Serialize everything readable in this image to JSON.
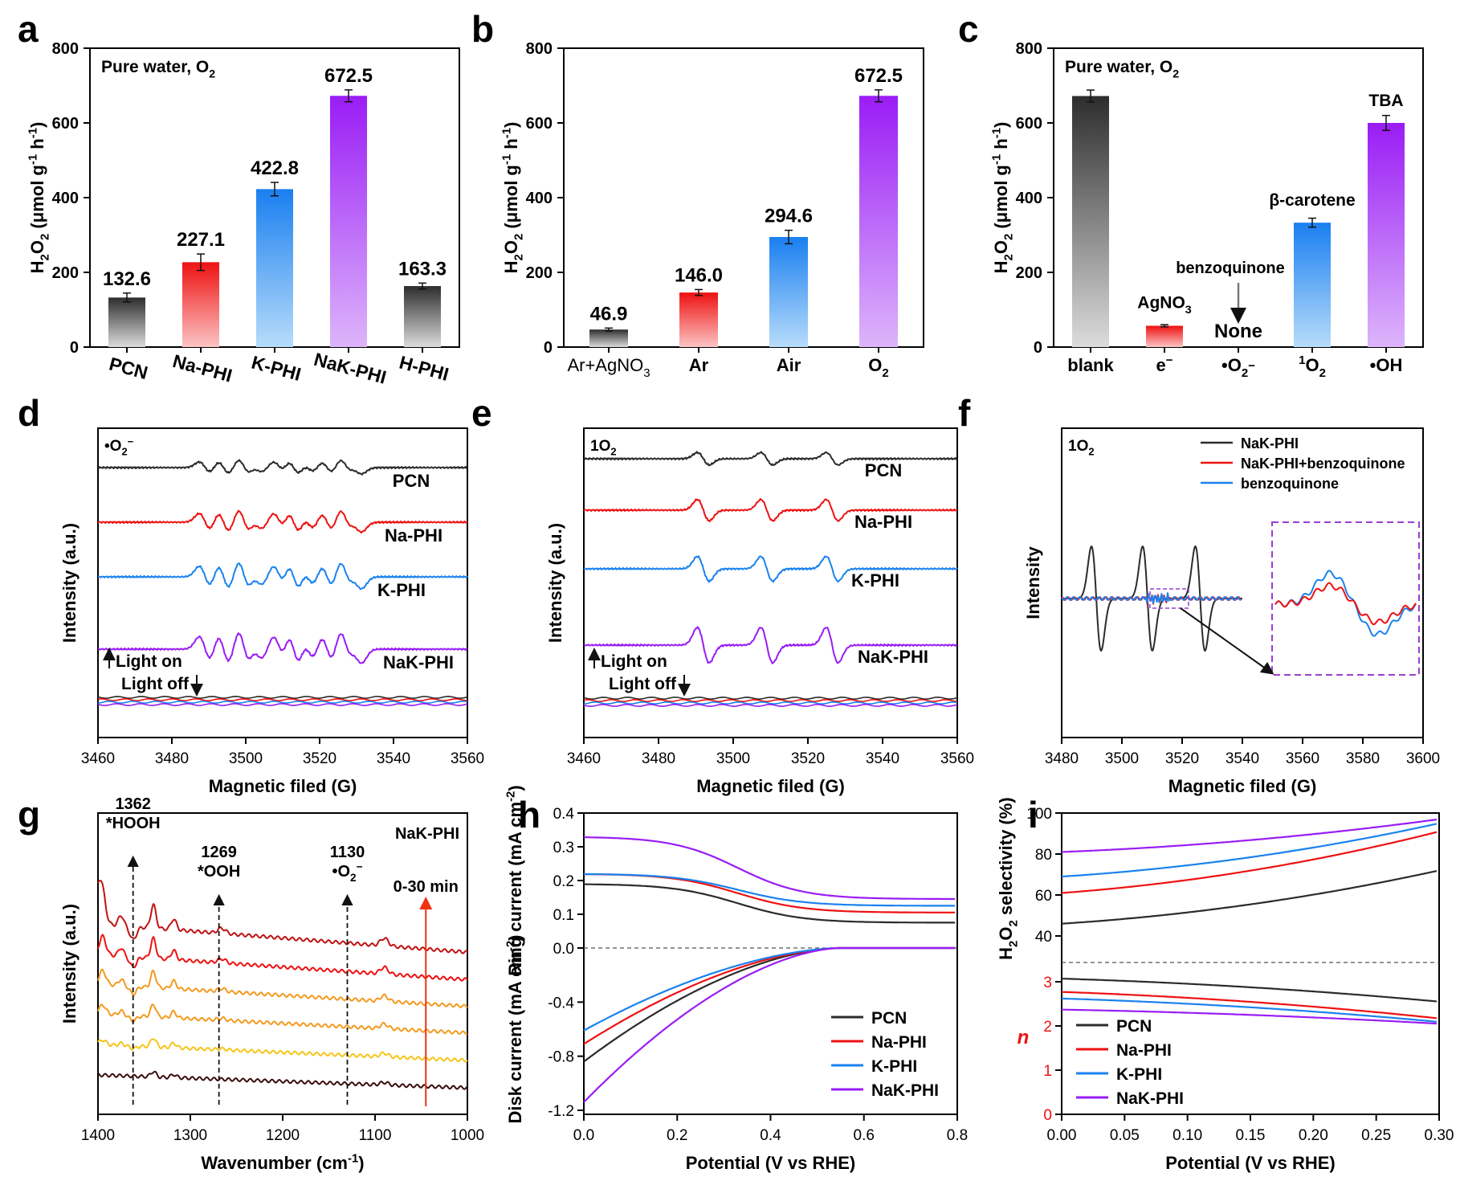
{
  "colors": {
    "black": "#2b2b2b",
    "red": "#ee1111",
    "blue": "#1a82ee",
    "purple": "#9a1cf5",
    "gray": "#777777",
    "orange": "#f39a1f",
    "darkred": "#c01212",
    "brown": "#3a0d0d",
    "yellow": "#f6c51a"
  },
  "chart_data": [
    {
      "panel": "a",
      "type": "bar",
      "title": "Pure water, O2",
      "ylabel": "H2O2 (μmol g-1 h-1)",
      "xlabel": "",
      "ylim": [
        0,
        800
      ],
      "yticks": [
        0,
        200,
        400,
        600,
        800
      ],
      "categories": [
        "PCN",
        "Na-PHI",
        "K-PHI",
        "NaK-PHI",
        "H-PHI"
      ],
      "values": [
        132.6,
        227.1,
        422.8,
        672.5,
        163.3
      ],
      "errors": [
        12,
        22,
        18,
        16,
        8
      ],
      "value_labels": [
        "132.6",
        "227.1",
        "422.8",
        "672.5",
        "163.3"
      ],
      "bar_colors": [
        "gray",
        "red",
        "blue",
        "purple",
        "gray"
      ]
    },
    {
      "panel": "b",
      "type": "bar",
      "title": "",
      "ylabel": "H2O2 (μmol g-1 h-1)",
      "ylim": [
        0,
        800
      ],
      "yticks": [
        0,
        200,
        400,
        600,
        800
      ],
      "categories": [
        "Ar+AgNO3",
        "Ar",
        "Air",
        "O2"
      ],
      "values": [
        46.9,
        146.0,
        294.6,
        672.5
      ],
      "errors": [
        4,
        8,
        18,
        16
      ],
      "value_labels": [
        "46.9",
        "146.0",
        "294.6",
        "672.5"
      ],
      "bar_colors": [
        "gray",
        "red",
        "blue",
        "purple"
      ]
    },
    {
      "panel": "c",
      "type": "bar",
      "title": "Pure water, O2",
      "ylabel": "H2O2 (μmol g-1 h-1)",
      "ylim": [
        0,
        800
      ],
      "yticks": [
        0,
        200,
        400,
        600,
        800
      ],
      "categories": [
        "blank",
        "e−",
        "•O2−",
        "1O2",
        "•OH"
      ],
      "values": [
        672,
        57,
        0,
        333,
        600
      ],
      "errors": [
        16,
        3,
        0,
        12,
        20
      ],
      "annotations": [
        "",
        "AgNO3",
        "benzoquinone",
        "β-carotene",
        "TBA"
      ],
      "none_label": "None",
      "bar_colors": [
        "gray",
        "red",
        "purple",
        "blue",
        "purple"
      ]
    },
    {
      "panel": "d",
      "type": "line",
      "title": "•O2−",
      "xlabel": "Magnetic filed (G)",
      "ylabel": "Intensity (a.u.)",
      "xlim": [
        3460,
        3560
      ],
      "xticks": [
        3460,
        3480,
        3500,
        3520,
        3540,
        3560
      ],
      "series": [
        {
          "name": "PCN",
          "color": "black",
          "amp": 0.45
        },
        {
          "name": "Na-PHI",
          "color": "red",
          "amp": 0.7
        },
        {
          "name": "K-PHI",
          "color": "blue",
          "amp": 0.85
        },
        {
          "name": "NaK-PHI",
          "color": "purple",
          "amp": 1.0
        }
      ],
      "light_on": "Light on",
      "light_off": "Light off"
    },
    {
      "panel": "e",
      "type": "line",
      "title": "1O2",
      "xlabel": "Magnetic filed (G)",
      "ylabel": "Intensity (a.u.)",
      "xlim": [
        3460,
        3560
      ],
      "xticks": [
        3460,
        3480,
        3500,
        3520,
        3540,
        3560
      ],
      "series": [
        {
          "name": "PCN",
          "color": "black",
          "amp": 0.35
        },
        {
          "name": "Na-PHI",
          "color": "red",
          "amp": 0.6
        },
        {
          "name": "K-PHI",
          "color": "blue",
          "amp": 0.7
        },
        {
          "name": "NaK-PHI",
          "color": "purple",
          "amp": 1.0
        }
      ],
      "light_on": "Light on",
      "light_off": "Light off"
    },
    {
      "panel": "f",
      "type": "line",
      "title": "1O2",
      "xlabel": "Magnetic filed (G)",
      "ylabel": "Intensity",
      "xlim": [
        3480,
        3600
      ],
      "xticks": [
        3480,
        3500,
        3520,
        3540,
        3560,
        3580,
        3600
      ],
      "series": [
        {
          "name": "NaK-PHI",
          "color": "black"
        },
        {
          "name": "NaK-PHI+benzoquinone",
          "color": "red"
        },
        {
          "name": "benzoquinone",
          "color": "blue"
        }
      ]
    },
    {
      "panel": "g",
      "type": "line",
      "title": "NaK-PHI",
      "xlabel": "Wavenumber (cm-1)",
      "ylabel": "Intensity (a.u.)",
      "xlim": [
        1400,
        1000
      ],
      "xticks": [
        1400,
        1300,
        1200,
        1100,
        1000
      ],
      "time_label": "0-30 min",
      "peaks": [
        {
          "x": 1362,
          "num": "1362",
          "name": "*HOOH"
        },
        {
          "x": 1269,
          "num": "1269",
          "name": "*OOH"
        },
        {
          "x": 1130,
          "num": "1130",
          "name": "•O2−"
        }
      ],
      "series_colors": [
        "brown",
        "yellow",
        "orange",
        "orange",
        "red",
        "darkred"
      ]
    },
    {
      "panel": "h",
      "type": "line",
      "xlabel": "Potential (V vs RHE)",
      "ylabel_top": "Ring current (mA cm-2)",
      "ylabel_bottom": "Disk current (mA cm-2)",
      "xlim": [
        0,
        0.8
      ],
      "xticks": [
        "0.0",
        "0.2",
        "0.4",
        "0.6",
        "0.8"
      ],
      "ring_ticks": [
        "0.4",
        "0.3",
        "0.2",
        "0.1",
        "0.0"
      ],
      "disk_ticks": [
        "-0.4",
        "-0.8",
        "-1.2"
      ],
      "series": [
        {
          "name": "PCN",
          "color": "black",
          "ring_start": 0.19,
          "ring_end": 0.075,
          "disk_start": -0.84
        },
        {
          "name": "Na-PHI",
          "color": "red",
          "ring_start": 0.22,
          "ring_end": 0.105,
          "disk_start": -0.71
        },
        {
          "name": "K-PHI",
          "color": "blue",
          "ring_start": 0.22,
          "ring_end": 0.125,
          "disk_start": -0.61
        },
        {
          "name": "NaK-PHI",
          "color": "purple",
          "ring_start": 0.33,
          "ring_end": 0.145,
          "disk_start": -1.14
        }
      ]
    },
    {
      "panel": "i",
      "type": "line",
      "xlabel": "Potential (V vs RHE)",
      "ylabel_top": "H2O2 selectivity (%)",
      "ylabel_bottom": "n",
      "xlim": [
        0,
        0.3
      ],
      "xticks": [
        "0.00",
        "0.05",
        "0.10",
        "0.15",
        "0.20",
        "0.25",
        "0.30"
      ],
      "sel_ticks": [
        "100",
        "80",
        "60",
        "40"
      ],
      "n_ticks": [
        "3",
        "2",
        "1",
        "0"
      ],
      "series": [
        {
          "name": "PCN",
          "color": "black",
          "sel_start": 46,
          "sel_end": 72,
          "n_start": 3.07,
          "n_end": 2.55
        },
        {
          "name": "Na-PHI",
          "color": "red",
          "sel_start": 61,
          "sel_end": 91,
          "n_start": 2.77,
          "n_end": 2.17
        },
        {
          "name": "K-PHI",
          "color": "blue",
          "sel_start": 69,
          "sel_end": 95,
          "n_start": 2.62,
          "n_end": 2.09
        },
        {
          "name": "NaK-PHI",
          "color": "purple",
          "sel_start": 81,
          "sel_end": 97,
          "n_start": 2.37,
          "n_end": 2.05
        }
      ]
    }
  ],
  "panel_letters": [
    "a",
    "b",
    "c",
    "d",
    "e",
    "f",
    "g",
    "h",
    "i"
  ]
}
